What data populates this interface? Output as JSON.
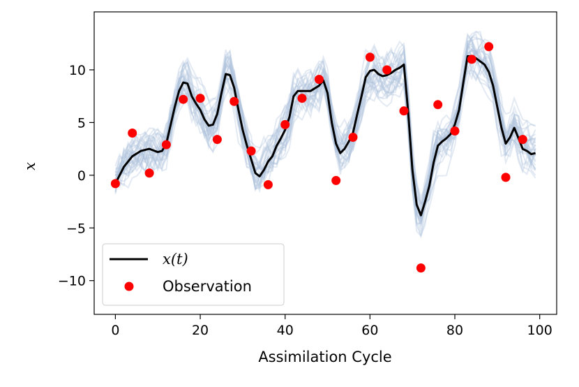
{
  "chart_data": {
    "type": "line",
    "xlabel": "Assimilation Cycle",
    "ylabel": "x",
    "xlim": [
      -5,
      104
    ],
    "ylim": [
      -13.2,
      15.5
    ],
    "xticks": [
      0,
      20,
      40,
      60,
      80,
      100
    ],
    "yticks": [
      -10,
      -5,
      0,
      5,
      10
    ],
    "ytick_labels": [
      "−10",
      "−5",
      "0",
      "5",
      "10"
    ],
    "grid": false,
    "legend_position": "lower-left",
    "colors": {
      "truth": "#000000",
      "observation": "#ff0000",
      "ensemble": "#b0c4de"
    },
    "truth": {
      "name": "x(t)",
      "x": [
        0,
        2,
        4,
        6,
        8,
        10,
        11,
        12,
        14,
        15,
        16,
        17,
        18,
        19,
        20,
        21,
        22,
        23,
        24,
        25,
        26,
        27,
        28,
        29,
        30,
        31,
        32,
        33,
        34,
        35,
        36,
        37,
        38,
        39,
        40,
        41,
        42,
        43,
        44,
        46,
        48,
        49,
        50,
        51,
        52,
        53,
        54,
        55,
        56,
        57,
        58,
        59,
        60,
        61,
        62,
        63,
        64,
        65,
        66,
        67,
        68,
        69,
        70,
        71,
        72,
        73,
        74,
        75,
        76,
        77,
        78,
        79,
        80,
        81,
        82,
        83,
        84,
        85,
        86,
        87,
        88,
        89,
        90,
        91,
        92,
        93,
        94,
        95,
        96,
        97,
        98,
        99
      ],
      "values": [
        -0.8,
        0.8,
        1.8,
        2.3,
        2.5,
        2.2,
        2.3,
        3.0,
        6.5,
        8.0,
        8.8,
        8.7,
        7.5,
        6.8,
        6.2,
        5.3,
        4.7,
        4.8,
        5.8,
        7.8,
        9.6,
        9.5,
        8.3,
        6.2,
        4.3,
        2.8,
        1.5,
        0.2,
        -0.1,
        0.5,
        1.3,
        1.8,
        2.8,
        3.5,
        4.3,
        5.5,
        7.5,
        8.0,
        8.0,
        8.0,
        8.5,
        9.0,
        7.8,
        5.0,
        3.0,
        2.1,
        2.5,
        3.2,
        4.0,
        5.8,
        7.5,
        9.3,
        9.9,
        10.0,
        9.6,
        9.4,
        9.5,
        9.7,
        10.0,
        10.2,
        10.5,
        6.0,
        0.5,
        -2.8,
        -3.8,
        -2.5,
        -1.0,
        1.2,
        2.8,
        3.2,
        3.5,
        3.9,
        4.8,
        6.2,
        8.8,
        11.3,
        11.3,
        11.1,
        10.8,
        10.5,
        9.8,
        8.5,
        6.5,
        4.5,
        3.0,
        3.6,
        4.5,
        3.5,
        2.5,
        2.3,
        2.0,
        2.1
      ]
    },
    "observations": {
      "name": "Observation",
      "x": [
        0,
        4,
        8,
        12,
        16,
        20,
        24,
        28,
        32,
        36,
        40,
        44,
        48,
        52,
        56,
        60,
        64,
        68,
        72,
        76,
        80,
        84,
        88,
        92,
        96
      ],
      "values": [
        -0.8,
        4.0,
        0.2,
        2.9,
        7.2,
        7.3,
        3.4,
        7.0,
        2.3,
        -0.9,
        4.8,
        7.3,
        9.1,
        -0.5,
        3.6,
        11.2,
        10.0,
        6.1,
        -8.8,
        6.7,
        4.2,
        11.0,
        12.2,
        -0.2,
        3.4
      ]
    },
    "ensemble": {
      "members": 30,
      "x_range": [
        0,
        99
      ]
    }
  }
}
